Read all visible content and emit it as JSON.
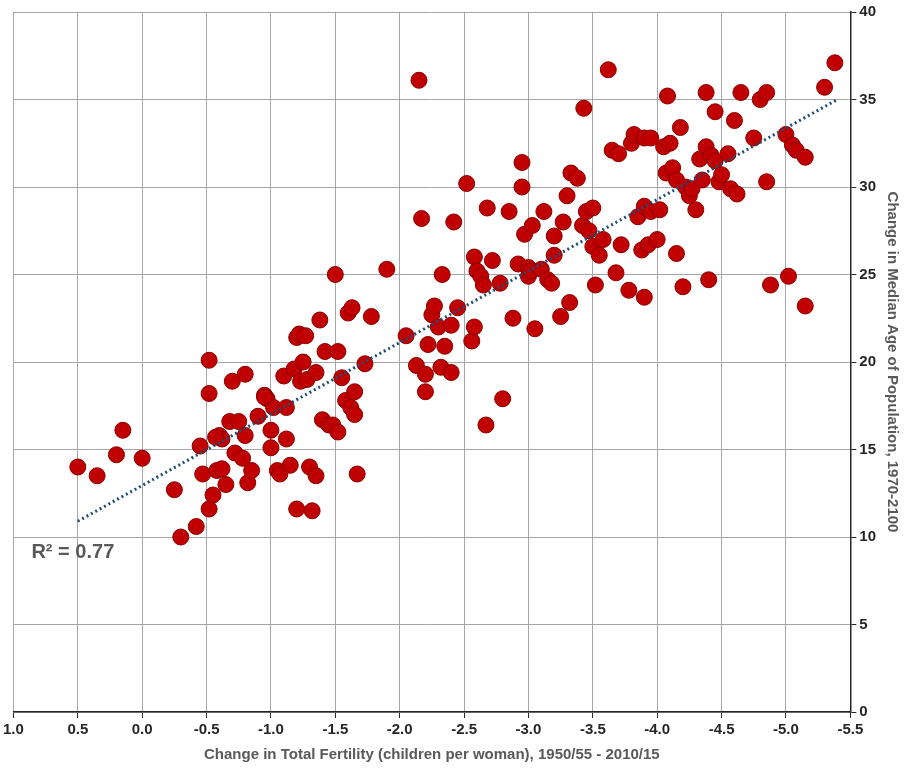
{
  "chart_data": {
    "type": "scatter",
    "x_label": "Change in Total Fertility (children per woman), 1950/55 - 2010/15",
    "y_label": "Change in Median Age of Population, 1970-2100",
    "annotations": [
      "R² = 0.77"
    ],
    "xlim": [
      1.0,
      -5.5
    ],
    "xticks": [
      {
        "value": 1.0,
        "label": "1.0"
      },
      0.5,
      {
        "value": 0.0,
        "label": "0.0"
      },
      -0.5,
      {
        "value": -1.0,
        "label": "-1.0"
      },
      -1.5,
      {
        "value": -2.0,
        "label": "-2.0"
      },
      -2.5,
      {
        "value": -3.0,
        "label": "-3.0"
      },
      -3.5,
      {
        "value": -4.0,
        "label": "-4.0"
      },
      -4.5,
      {
        "value": -5.0,
        "label": "-5.0"
      },
      -5.5
    ],
    "ylim": [
      0,
      40
    ],
    "yticks": [
      0,
      5,
      10,
      15,
      20,
      25,
      30,
      35,
      40
    ],
    "grid": true,
    "series": [
      {
        "type": "scatter",
        "marker": "circle",
        "color": "#c00000",
        "x": [
          0.5,
          0.35,
          0.2,
          0.15,
          0.0,
          -0.25,
          -0.3,
          -0.42,
          -0.45,
          -0.47,
          -0.52,
          -0.52,
          -0.52,
          -0.55,
          -0.58,
          -0.6,
          -0.62,
          -0.65,
          -0.68,
          -0.7,
          -0.72,
          -0.75,
          -0.78,
          -0.8,
          -0.8,
          -0.82,
          -0.85,
          -0.9,
          -0.95,
          -0.97,
          -1.0,
          -1.0,
          -1.02,
          -1.05,
          -1.07,
          -1.1,
          -1.12,
          -1.12,
          -1.15,
          -1.18,
          -1.2,
          -1.2,
          -1.22,
          -1.23,
          -1.25,
          -1.28,
          -1.3,
          -1.32,
          -1.35,
          -1.35,
          -1.38,
          -1.4,
          -1.42,
          -1.45,
          -1.48,
          -1.5,
          -1.52,
          -1.52,
          -1.55,
          -1.58,
          -1.6,
          -1.62,
          -1.63,
          -1.65,
          -1.65,
          -1.67,
          -1.73,
          -1.78,
          -1.9,
          -2.05,
          -2.13,
          -2.15,
          -2.17,
          -2.2,
          -2.2,
          -2.22,
          -2.25,
          -2.27,
          -2.3,
          -2.32,
          -2.33,
          -2.35,
          -2.4,
          -2.4,
          -2.42,
          -2.45,
          -2.52,
          -2.56,
          -2.58,
          -2.58,
          -2.6,
          -2.63,
          -2.65,
          -2.67,
          -2.68,
          -2.72,
          -2.78,
          -2.8,
          -2.85,
          -2.88,
          -2.92,
          -2.95,
          -2.95,
          -2.97,
          -3.0,
          -3.0,
          -3.02,
          -3.03,
          -3.05,
          -3.1,
          -3.12,
          -3.15,
          -3.18,
          -3.2,
          -3.2,
          -3.25,
          -3.27,
          -3.3,
          -3.32,
          -3.33,
          -3.38,
          -3.42,
          -3.43,
          -3.45,
          -3.47,
          -3.5,
          -3.5,
          -3.52,
          -3.55,
          -3.58,
          -3.62,
          -3.65,
          -3.68,
          -3.7,
          -3.72,
          -3.78,
          -3.8,
          -3.82,
          -3.85,
          -3.88,
          -3.9,
          -3.9,
          -3.9,
          -3.93,
          -3.95,
          -3.95,
          -4.0,
          -4.02,
          -4.05,
          -4.07,
          -4.08,
          -4.1,
          -4.12,
          -4.15,
          -4.15,
          -4.18,
          -4.2,
          -4.22,
          -4.25,
          -4.27,
          -4.3,
          -4.33,
          -4.35,
          -4.38,
          -4.38,
          -4.4,
          -4.42,
          -4.45,
          -4.45,
          -4.48,
          -4.5,
          -4.55,
          -4.57,
          -4.6,
          -4.62,
          -4.65,
          -4.75,
          -4.8,
          -4.85,
          -4.85,
          -4.88,
          -5.0,
          -5.02,
          -5.05,
          -5.08,
          -5.15,
          -5.15,
          -5.3,
          -5.38,
          -0.95,
          -0.57,
          -1.27,
          -0.62
        ],
        "values": [
          14.0,
          13.5,
          14.7,
          16.1,
          14.5,
          12.7,
          10.0,
          10.6,
          15.2,
          13.6,
          20.1,
          18.2,
          11.6,
          12.4,
          13.8,
          15.8,
          15.6,
          13.0,
          16.6,
          18.9,
          14.8,
          16.6,
          14.5,
          19.3,
          15.8,
          13.1,
          13.8,
          16.9,
          18.1,
          17.9,
          16.1,
          15.1,
          17.4,
          13.8,
          13.6,
          19.2,
          17.4,
          15.6,
          14.1,
          19.6,
          11.6,
          21.4,
          21.6,
          18.9,
          20.0,
          19.0,
          14.0,
          11.5,
          13.5,
          19.4,
          22.4,
          16.7,
          20.6,
          16.4,
          16.4,
          25.0,
          16.0,
          20.6,
          19.1,
          17.8,
          22.8,
          17.4,
          23.1,
          17.0,
          18.3,
          13.6,
          19.9,
          22.6,
          25.3,
          21.5,
          19.8,
          36.1,
          28.2,
          18.3,
          19.3,
          21.0,
          22.7,
          23.2,
          22.0,
          19.7,
          25.0,
          20.9,
          19.4,
          22.1,
          28.0,
          23.1,
          30.2,
          21.2,
          22.0,
          26.0,
          25.2,
          24.9,
          24.4,
          16.4,
          28.8,
          25.8,
          24.5,
          17.9,
          28.6,
          22.5,
          25.6,
          31.4,
          30.0,
          27.3,
          25.4,
          24.9,
          25.2,
          27.8,
          21.9,
          25.3,
          28.6,
          24.7,
          24.5,
          27.2,
          26.1,
          22.6,
          28.0,
          29.5,
          23.4,
          30.8,
          30.5,
          27.8,
          34.5,
          28.6,
          27.5,
          28.8,
          26.6,
          24.4,
          26.1,
          27.0,
          36.7,
          32.1,
          25.1,
          31.9,
          26.7,
          24.1,
          32.5,
          33.0,
          28.3,
          26.4,
          23.7,
          28.9,
          32.8,
          26.7,
          28.6,
          32.8,
          27.0,
          28.7,
          32.3,
          30.8,
          35.2,
          32.5,
          31.1,
          26.2,
          30.4,
          33.4,
          24.3,
          30.0,
          29.5,
          29.9,
          28.7,
          31.6,
          30.4,
          35.4,
          32.3,
          24.7,
          31.8,
          34.3,
          31.5,
          30.3,
          30.7,
          31.9,
          29.9,
          33.8,
          29.6,
          35.4,
          32.8,
          35.0,
          35.4,
          30.3,
          24.4,
          33.0,
          24.9,
          32.4,
          32.1,
          23.2,
          31.7,
          35.7,
          37.1,
          18.0,
          15.7,
          21.5,
          13.9
        ]
      },
      {
        "type": "line",
        "line_style": "dotted",
        "color": "#1f4e79",
        "x": [
          0.5,
          -5.4
        ],
        "values": [
          10.9,
          35.0
        ]
      }
    ]
  }
}
